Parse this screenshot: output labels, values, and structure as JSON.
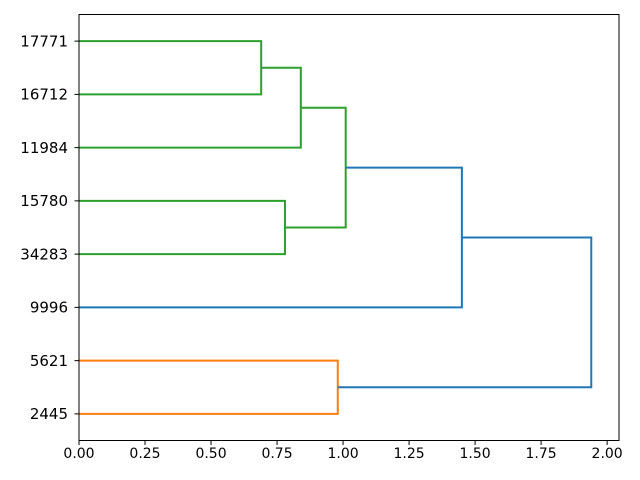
{
  "figure": {
    "background": "#ffffff",
    "axes_edge_color": "#000000",
    "tick_color": "#000000",
    "label_color": "#000000"
  },
  "chart_data": {
    "type": "dendrogram",
    "orientation": "right",
    "title": "",
    "xlabel": "",
    "ylabel": "",
    "grid": false,
    "legend": null,
    "xlim": [
      0,
      2.045
    ],
    "x_ticks": [
      {
        "value": 0.0,
        "label": "0.00"
      },
      {
        "value": 0.25,
        "label": "0.25"
      },
      {
        "value": 0.5,
        "label": "0.50"
      },
      {
        "value": 0.75,
        "label": "0.75"
      },
      {
        "value": 1.0,
        "label": "1.00"
      },
      {
        "value": 1.25,
        "label": "1.25"
      },
      {
        "value": 1.5,
        "label": "1.50"
      },
      {
        "value": 1.75,
        "label": "1.75"
      },
      {
        "value": 2.0,
        "label": "2.00"
      }
    ],
    "leaves_top_to_bottom": [
      "17771",
      "16712",
      "11984",
      "15780",
      "34283",
      "9996",
      "5621",
      "2445"
    ],
    "links": [
      {
        "id": "L1",
        "a": "17771",
        "b": "16712",
        "height": 0.69,
        "color": "green"
      },
      {
        "id": "L2",
        "a": "L1",
        "b": "11984",
        "height": 0.84,
        "color": "green"
      },
      {
        "id": "L3",
        "a": "15780",
        "b": "34283",
        "height": 0.78,
        "color": "green"
      },
      {
        "id": "L4",
        "a": "L2",
        "b": "L3",
        "height": 1.01,
        "color": "green"
      },
      {
        "id": "L5",
        "a": "L4",
        "b": "9996",
        "height": 1.45,
        "color": "blue"
      },
      {
        "id": "L6",
        "a": "5621",
        "b": "2445",
        "height": 0.98,
        "color": "orange"
      },
      {
        "id": "L7",
        "a": "L5",
        "b": "L6",
        "height": 1.94,
        "color": "blue"
      }
    ],
    "palette": {
      "blue": "#1f77b4",
      "orange": "#ff7f0e",
      "green": "#2ca02c"
    }
  }
}
